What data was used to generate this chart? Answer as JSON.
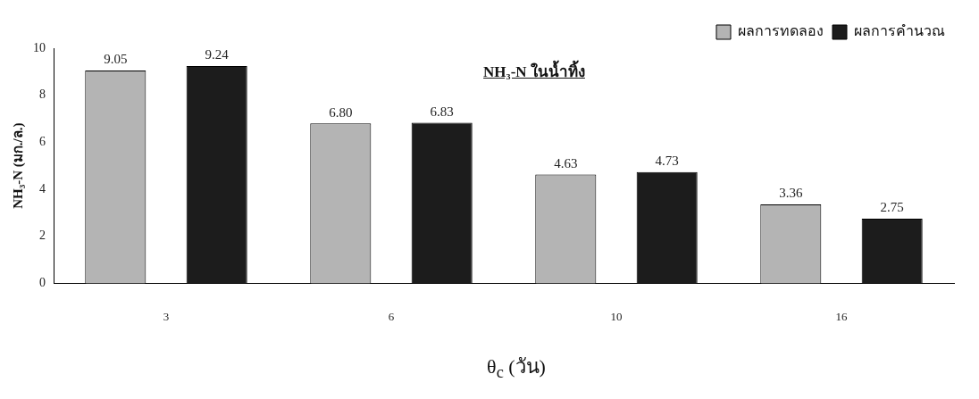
{
  "chart_data": {
    "type": "bar",
    "title": "NH₃-N ในน้ำทิ้ง",
    "xlabel": "θ$_{c}$ (วัน)",
    "ylabel": "NH₃-N (มก./ล.)",
    "categories": [
      "3",
      "6",
      "10",
      "16"
    ],
    "series": [
      {
        "name": "ผลการทดลอง",
        "color": "#b4b4b4",
        "values": [
          9.05,
          6.8,
          4.63,
          3.36
        ],
        "value_labels": [
          "9.05",
          "6.80",
          "4.63",
          "3.36"
        ]
      },
      {
        "name": "ผลการคำนวณ",
        "color": "#1c1c1c",
        "values": [
          9.24,
          6.83,
          4.73,
          2.75
        ],
        "value_labels": [
          "9.24",
          "6.83",
          "4.73",
          "2.75"
        ]
      }
    ],
    "ylim": [
      0,
      10
    ],
    "yticks": [
      0,
      2,
      4,
      6,
      8,
      10
    ],
    "grid": false,
    "legend": "top right"
  }
}
